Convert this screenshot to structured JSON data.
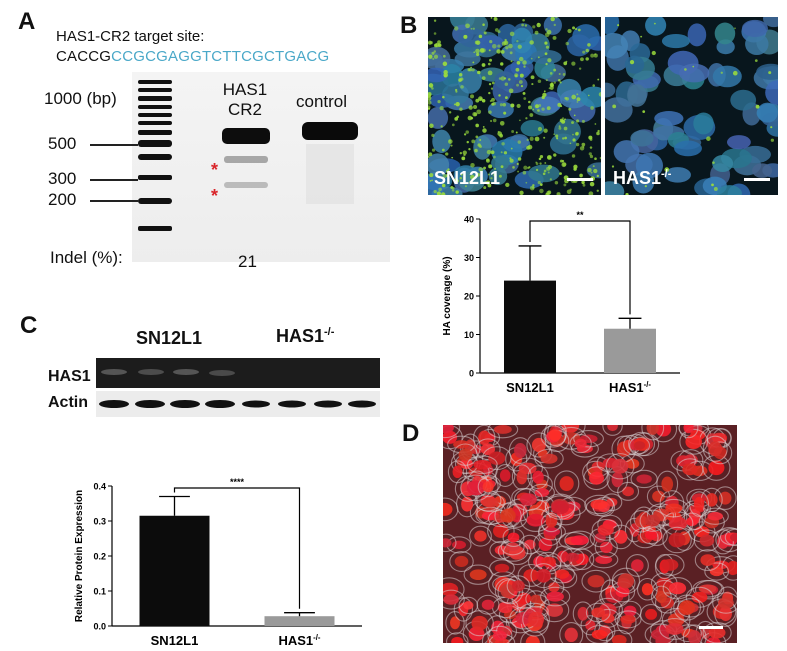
{
  "panels": {
    "a": {
      "label": "A",
      "target_title": "HAS1-CR2 target site:",
      "seq_prefix": "CACCG",
      "seq_target": "CCGCGAGGTCTTCGCTGACG",
      "lane1_line1": "HAS1",
      "lane1_line2": "CR2",
      "lane2": "control",
      "markers": [
        "1000 (bp)",
        "500",
        "300",
        "200"
      ],
      "asterisk": "*",
      "indel_label": "Indel (%):",
      "indel_value": "21"
    },
    "b": {
      "label": "B",
      "img1_label": "SN12L1",
      "img2_label_base": "HAS1",
      "img2_label_sup": "-/-"
    },
    "c": {
      "label": "C",
      "col1": "SN12L1",
      "col2_base": "HAS1",
      "col2_sup": "-/-",
      "row1": "HAS1",
      "row2": "Actin"
    },
    "d": {
      "label": "D"
    }
  },
  "chart_data": [
    {
      "type": "bar",
      "ylabel": "HA coverage (%)",
      "categories": [
        "SN12L1",
        "HAS1-/-"
      ],
      "category_base": [
        "SN12L1",
        "HAS1"
      ],
      "category_sup": [
        "",
        "-/-"
      ],
      "values": [
        24,
        11.5
      ],
      "errors": [
        9,
        2.7
      ],
      "ylim": [
        0,
        40
      ],
      "yticks": [
        "0",
        "10",
        "20",
        "30",
        "40"
      ],
      "significance": "**",
      "colors": [
        "#0c0c0c",
        "#9a9a9a"
      ]
    },
    {
      "type": "bar",
      "ylabel": "Relative Protein Expression",
      "categories": [
        "SN12L1",
        "HAS1-/-"
      ],
      "category_base": [
        "SN12L1",
        "HAS1"
      ],
      "category_sup": [
        "",
        "-/-"
      ],
      "values": [
        0.315,
        0.028
      ],
      "errors": [
        0.055,
        0.01
      ],
      "ylim": [
        0,
        0.4
      ],
      "yticks": [
        "0.0",
        "0.1",
        "0.2",
        "0.3",
        "0.4"
      ],
      "significance": "****",
      "colors": [
        "#0c0c0c",
        "#9a9a9a"
      ]
    }
  ]
}
